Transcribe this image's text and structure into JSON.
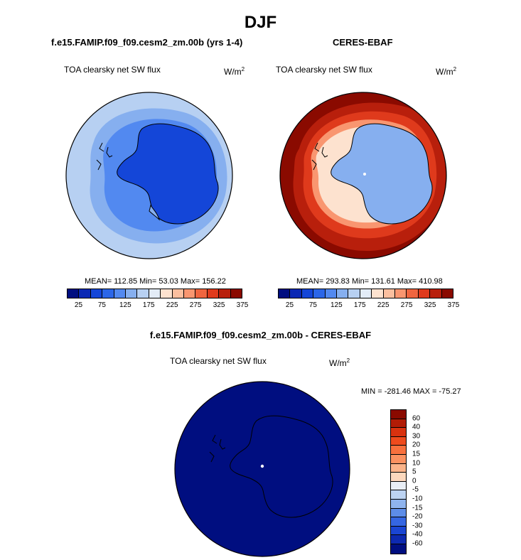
{
  "figure": {
    "title": "DJF"
  },
  "panels": {
    "model": {
      "title": "f.e15.FAMIP.f09_f09.cesm2_zm.00b (yrs 1-4)",
      "variable": "TOA clearsky net SW flux",
      "units_base": "W/m",
      "units_exp": "2",
      "stats": "MEAN= 112.85  Min=  53.03  Max= 156.22"
    },
    "obs": {
      "title": "CERES-EBAF",
      "variable": "TOA clearsky net SW flux",
      "units_base": "W/m",
      "units_exp": "2",
      "stats": "MEAN= 293.83  Min= 131.61  Max= 410.98"
    },
    "diff": {
      "title": "f.e15.FAMIP.f09_f09.cesm2_zm.00b - CERES-EBAF",
      "variable": "TOA clearsky net SW flux",
      "units_base": "W/m",
      "units_exp": "2",
      "stats": "MIN = -281.46 MAX = -75.27"
    }
  },
  "colorbars": {
    "abs": {
      "colors": [
        "#000e80",
        "#0a28b4",
        "#1446d8",
        "#2b66e8",
        "#5289f0",
        "#86afef",
        "#b7d0f2",
        "#e3ecf7",
        "#fde2cf",
        "#fbbf9f",
        "#f99670",
        "#f0653f",
        "#df3a1c",
        "#b81f0c",
        "#8a0a00"
      ],
      "tick_labels": [
        "25",
        "75",
        "125",
        "175",
        "225",
        "275",
        "325",
        "375"
      ]
    },
    "diff": {
      "colors": [
        "#8a0a00",
        "#b11c06",
        "#d8320f",
        "#ee4b1d",
        "#f8703d",
        "#fb9160",
        "#fbb48a",
        "#fcd8bd",
        "#e9eef5",
        "#bcd3f2",
        "#8fb4ee",
        "#5d8de8",
        "#3566e2",
        "#1a45d3",
        "#0d29b0",
        "#000e80"
      ],
      "tick_labels": [
        "60",
        "40",
        "30",
        "20",
        "15",
        "10",
        "5",
        "0",
        "-5",
        "-10",
        "-15",
        "-20",
        "-30",
        "-40",
        "-60"
      ]
    }
  },
  "map_fill_colors": {
    "model_ring_outer": "#b7d0f2",
    "model_ring_mid": "#86afef",
    "model_ring_inner": "#5289f0",
    "model_continent": "#1446d8",
    "obs_outer": "#8a0a00",
    "obs_ring_1": "#b81f0c",
    "obs_ring_2": "#df3a1c",
    "obs_ring_3": "#f99670",
    "obs_ring_4": "#fde2cf",
    "obs_continent": "#86afef",
    "diff_fill": "#000e80"
  }
}
